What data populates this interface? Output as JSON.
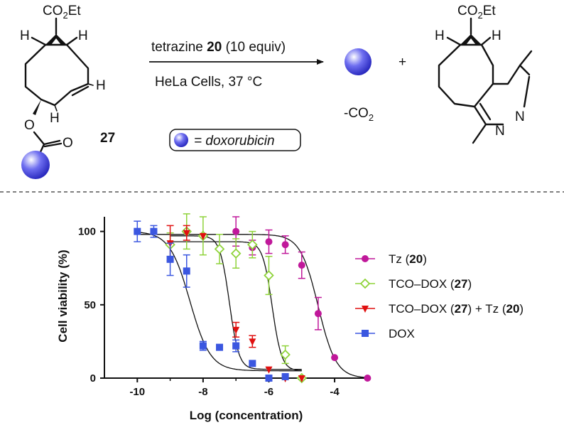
{
  "scheme": {
    "reagent_prefix": "tetrazine ",
    "reagent_number": "20",
    "reagent_suffix": " (10 equiv)",
    "conditions": "HeLa Cells, 37 °C",
    "plus": "+",
    "byproduct_prefix": "-CO",
    "byproduct_sub": "2",
    "legend_eq": "= doxorubicin",
    "compound_27": "27",
    "ester_top_left": "CO",
    "ester_sub": "2",
    "ester_tail": "Et",
    "atom_H": "H",
    "atom_O": "O",
    "atom_N": "N",
    "colors": {
      "sphere": "#3b3bd6",
      "sphere_light": "#ffffff"
    }
  },
  "chart_data": {
    "type": "scatter",
    "xlabel": "Log (concentration)",
    "ylabel": "Cell viability (%)",
    "xlim": [
      -11,
      -2.9
    ],
    "ylim": [
      0,
      110
    ],
    "x_ticks": [
      -10,
      -8,
      -6,
      -4
    ],
    "y_ticks": [
      0,
      50,
      100
    ],
    "grid": false,
    "legend_position": "right",
    "series": [
      {
        "name": "Tz (20)",
        "legend_parts": [
          "Tz (",
          "20",
          ")"
        ],
        "color": "#c0189a",
        "marker": "circle",
        "points": [
          [
            -7,
            100,
            10
          ],
          [
            -6.5,
            89,
            5
          ],
          [
            -6,
            93,
            8
          ],
          [
            -5.5,
            91,
            6
          ],
          [
            -5,
            77,
            9
          ],
          [
            -4.5,
            44,
            11
          ],
          [
            -4,
            14,
            0
          ],
          [
            -3,
            0,
            0
          ]
        ],
        "fit": {
          "top": 98,
          "bottom": 0,
          "logIC50": -4.5,
          "hill": 1.6,
          "from": -10,
          "to": -3
        }
      },
      {
        "name": "TCO–DOX (27)",
        "legend_parts": [
          "TCO–DOX (",
          "27",
          ")"
        ],
        "color": "#8fd33a",
        "marker": "diamond-open",
        "points": [
          [
            -9,
            91,
            8
          ],
          [
            -8.5,
            100,
            12
          ],
          [
            -8,
            97,
            13
          ],
          [
            -7.5,
            88,
            10
          ],
          [
            -7,
            85,
            10
          ],
          [
            -6.5,
            91,
            9
          ],
          [
            -6,
            70,
            13
          ],
          [
            -5.5,
            16,
            6
          ],
          [
            -5,
            0,
            0
          ]
        ],
        "fit": {
          "top": 93,
          "bottom": 5,
          "logIC50": -5.9,
          "hill": 3.0,
          "from": -9,
          "to": -5
        }
      },
      {
        "name": "TCO–DOX (27) + Tz (20)",
        "legend_parts": [
          "TCO–DOX (",
          "27",
          ") + Tz (",
          "20",
          ")"
        ],
        "color": "#e01010",
        "marker": "triangle-down",
        "points": [
          [
            -9,
            92,
            12
          ],
          [
            -8.5,
            99,
            5
          ],
          [
            -8,
            97,
            0
          ],
          [
            -7,
            33,
            5
          ],
          [
            -6.5,
            25,
            4
          ],
          [
            -6,
            6,
            0
          ],
          [
            -5.5,
            0,
            0
          ],
          [
            -5,
            0,
            0
          ]
        ],
        "fit": {
          "top": 97,
          "bottom": 6,
          "logIC50": -7.2,
          "hill": 3.0,
          "from": -9,
          "to": -5
        }
      },
      {
        "name": "DOX",
        "legend_parts": [
          "DOX"
        ],
        "color": "#3b57e0",
        "marker": "square",
        "points": [
          [
            -10,
            100,
            7
          ],
          [
            -9.5,
            100,
            4
          ],
          [
            -9,
            81,
            11
          ],
          [
            -8.5,
            73,
            11
          ],
          [
            -8,
            22,
            3
          ],
          [
            -7.5,
            21,
            0
          ],
          [
            -7,
            22,
            4
          ],
          [
            -6.5,
            10,
            0
          ],
          [
            -6,
            0,
            0
          ],
          [
            -5.5,
            1,
            0
          ]
        ],
        "fit": {
          "top": 100,
          "bottom": 5,
          "logIC50": -8.4,
          "hill": 1.4,
          "from": -10,
          "to": -5
        }
      }
    ]
  }
}
